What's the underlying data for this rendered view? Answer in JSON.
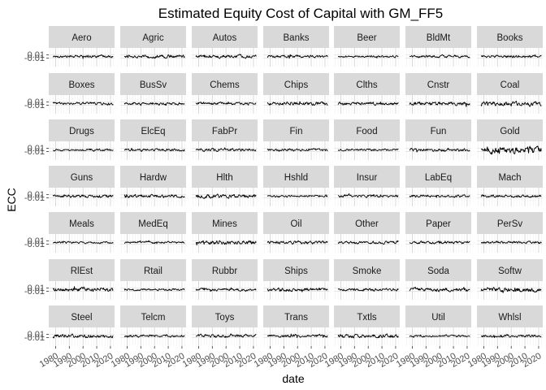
{
  "chart_data": {
    "type": "line",
    "title": "Estimated Equity Cost of Capital with GM_FF5",
    "xlabel": "date",
    "ylabel": "ECC",
    "layout": "facet grid 7 columns x 7 rows",
    "facets": [
      "Aero",
      "Agric",
      "Autos",
      "Banks",
      "Beer",
      "BldMt",
      "Books",
      "Boxes",
      "BusSv",
      "Chems",
      "Chips",
      "Clths",
      "Cnstr",
      "Coal",
      "Drugs",
      "ElcEq",
      "FabPr",
      "Fin",
      "Food",
      "Fun",
      "Gold",
      "Guns",
      "Hardw",
      "Hlth",
      "Hshld",
      "Insur",
      "LabEq",
      "Mach",
      "Meals",
      "MedEq",
      "Mines",
      "Oil",
      "Other",
      "Paper",
      "PerSv",
      "RlEst",
      "Rtail",
      "Rubbr",
      "Ships",
      "Smoke",
      "Soda",
      "Softw",
      "Steel",
      "Telcm",
      "Toys",
      "Trans",
      "Txtls",
      "Util",
      "Whlsl"
    ],
    "x_ticks": [
      1980,
      1990,
      2000,
      2010,
      2020
    ],
    "x_tick_labels": [
      "1980",
      "1990",
      "2000",
      "2010",
      "2020"
    ],
    "xlim": [
      1975,
      2023
    ],
    "y_ticks": [
      0.01,
      -0.01
    ],
    "y_tick_labels": [
      "0.01",
      "-0.01"
    ],
    "ylim": [
      -0.06,
      0.05
    ],
    "grid": true,
    "theme": "gray strips, white panels, light gray grid",
    "series_volatility": {
      "Aero": 0.005,
      "Agric": 0.006,
      "Autos": 0.006,
      "Banks": 0.005,
      "Beer": 0.004,
      "BldMt": 0.005,
      "Books": 0.005,
      "Boxes": 0.005,
      "BusSv": 0.005,
      "Chems": 0.005,
      "Chips": 0.007,
      "Clths": 0.006,
      "Cnstr": 0.007,
      "Coal": 0.009,
      "Drugs": 0.004,
      "ElcEq": 0.005,
      "FabPr": 0.006,
      "Fin": 0.005,
      "Food": 0.004,
      "Fun": 0.006,
      "Gold": 0.013,
      "Guns": 0.006,
      "Hardw": 0.006,
      "Hlth": 0.007,
      "Hshld": 0.004,
      "Insur": 0.005,
      "LabEq": 0.005,
      "Mach": 0.005,
      "Meals": 0.004,
      "MedEq": 0.004,
      "Mines": 0.008,
      "Oil": 0.006,
      "Other": 0.005,
      "Paper": 0.005,
      "PerSv": 0.005,
      "RlEst": 0.008,
      "Rtail": 0.004,
      "Rubbr": 0.005,
      "Ships": 0.007,
      "Smoke": 0.005,
      "Soda": 0.007,
      "Softw": 0.009,
      "Steel": 0.007,
      "Telcm": 0.005,
      "Toys": 0.006,
      "Trans": 0.005,
      "Txtls": 0.007,
      "Util": 0.004,
      "Whlsl": 0.005
    }
  }
}
